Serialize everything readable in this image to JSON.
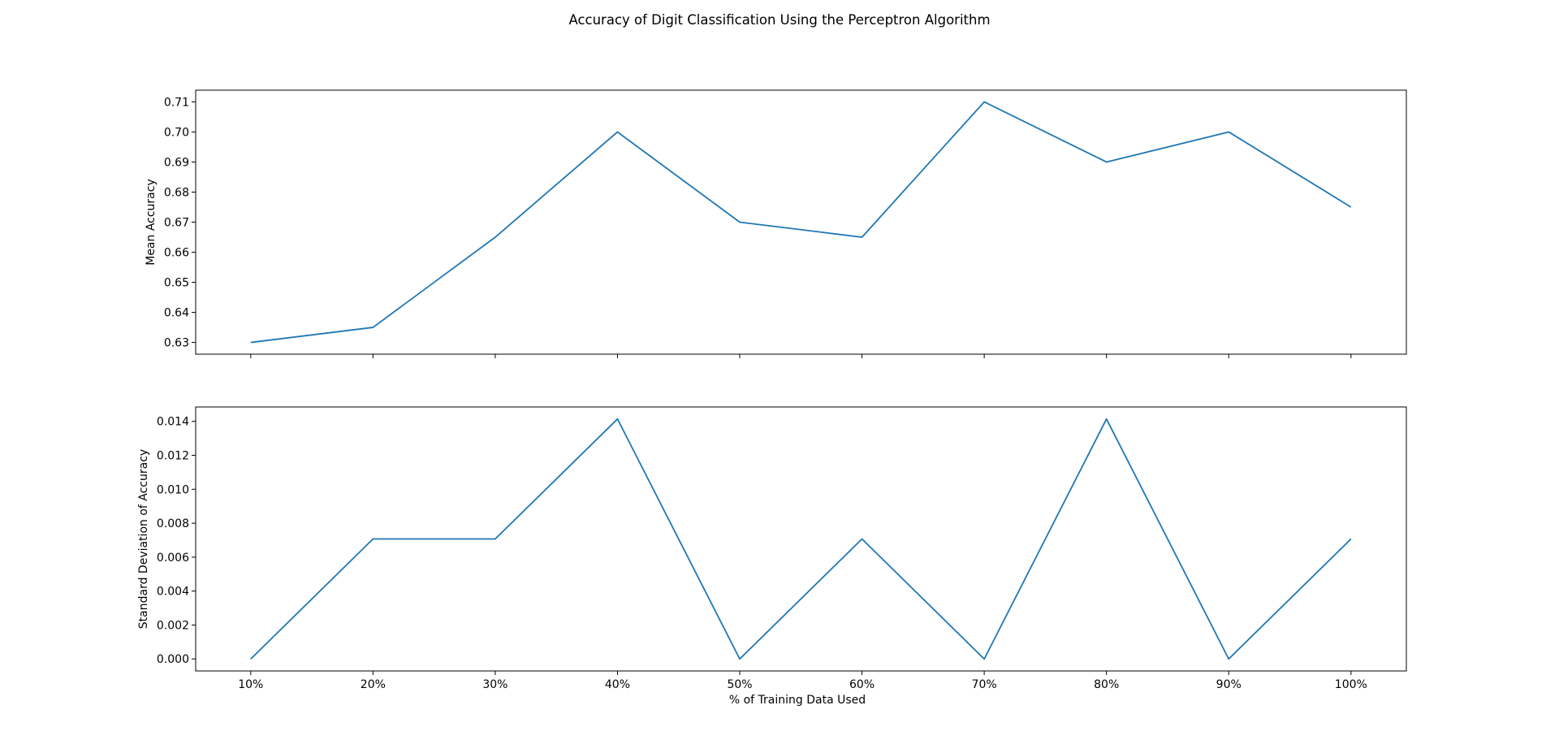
{
  "chart_data": {
    "type": "line",
    "title": "Accuracy of Digit Classification Using the Perceptron Algorithm",
    "xlabel": "% of Training Data Used",
    "categories": [
      "10%",
      "20%",
      "30%",
      "40%",
      "50%",
      "60%",
      "70%",
      "80%",
      "90%",
      "100%"
    ],
    "line_color": "#1f77b4",
    "grid": false,
    "legend": "none",
    "subplots": [
      {
        "ylabel": "Mean Accuracy",
        "ylim": [
          0.6261,
          0.7139
        ],
        "yticks": [
          0.63,
          0.64,
          0.65,
          0.66,
          0.67,
          0.68,
          0.69,
          0.7,
          0.71
        ],
        "ytick_labels": [
          "0.63",
          "0.64",
          "0.65",
          "0.66",
          "0.67",
          "0.68",
          "0.69",
          "0.70",
          "0.71"
        ],
        "x_tick_labels_shown": false,
        "values": [
          0.63,
          0.635,
          0.665,
          0.7,
          0.67,
          0.665,
          0.71,
          0.69,
          0.7,
          0.675
        ]
      },
      {
        "ylabel": "Standard Deviation of Accuracy",
        "ylim": [
          -0.000707,
          0.014849
        ],
        "yticks": [
          0.0,
          0.002,
          0.004,
          0.006,
          0.008,
          0.01,
          0.012,
          0.014
        ],
        "ytick_labels": [
          "0.000",
          "0.002",
          "0.004",
          "0.006",
          "0.008",
          "0.010",
          "0.012",
          "0.014"
        ],
        "x_tick_labels_shown": true,
        "values": [
          0.0,
          0.00707,
          0.00707,
          0.01414,
          0.0,
          0.00707,
          0.0,
          0.01414,
          0.0,
          0.00707
        ]
      }
    ]
  }
}
